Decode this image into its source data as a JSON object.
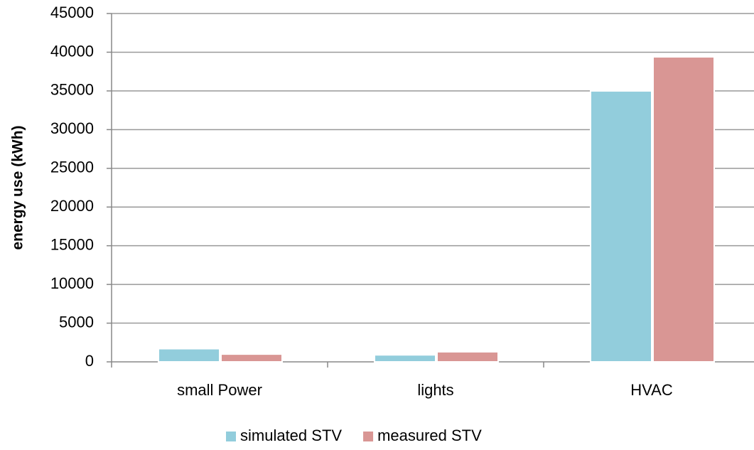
{
  "chart_data": {
    "type": "bar",
    "y_label": "energy use (kWh)",
    "categories": [
      "small Power",
      "lights",
      "HVAC"
    ],
    "series": [
      {
        "name": "simulated STV",
        "color": "#92cddc",
        "values": [
          1700,
          900,
          35000
        ]
      },
      {
        "name": "measured STV",
        "color": "#d99694",
        "values": [
          1000,
          1300,
          39400
        ]
      }
    ],
    "ylim": [
      0,
      45000
    ],
    "yticks": [
      0,
      5000,
      10000,
      15000,
      20000,
      25000,
      30000,
      35000,
      40000,
      45000
    ],
    "grid": true,
    "legend": "bottom"
  }
}
